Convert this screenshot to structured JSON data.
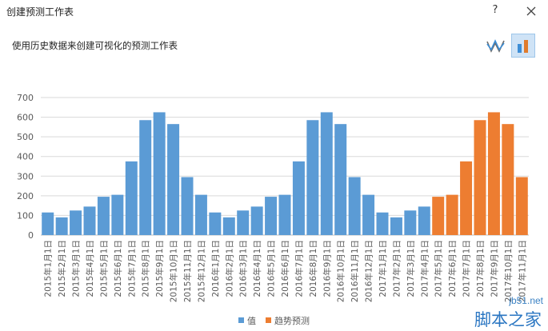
{
  "window": {
    "title": "创建预测工作表",
    "help_label": "?"
  },
  "header": {
    "subtitle": "使用历史数据来创建可视化的预测工作表"
  },
  "chart_type_buttons": [
    {
      "icon": "line-chart-icon",
      "selected": false
    },
    {
      "icon": "column-chart-icon",
      "selected": true
    }
  ],
  "colors": {
    "value": "#5b9bd5",
    "forecast": "#ed7d31",
    "grid": "#d9d9d9",
    "axis_text": "#595959"
  },
  "chart_data": {
    "type": "bar",
    "ylim": [
      0,
      700
    ],
    "y_ticks": [
      0,
      100,
      200,
      300,
      400,
      500,
      600,
      700
    ],
    "grid": true,
    "legend_position": "bottom-center",
    "categories": [
      "2015年1月1日",
      "2015年2月1日",
      "2015年3月1日",
      "2015年4月1日",
      "2015年5月1日",
      "2015年6月1日",
      "2015年7月1日",
      "2015年8月1日",
      "2015年9月1日",
      "2015年10月1日",
      "2015年11月1日",
      "2015年12月1日",
      "2016年1月1日",
      "2016年2月1日",
      "2016年3月1日",
      "2016年4月1日",
      "2016年5月1日",
      "2016年6月1日",
      "2016年7月1日",
      "2016年8月1日",
      "2016年9月1日",
      "2016年10月1日",
      "2016年11月1日",
      "2016年12月1日",
      "2017年1月1日",
      "2017年2月1日",
      "2017年3月1日",
      "2017年4月1日",
      "2017年5月1日",
      "2017年6月1日",
      "2017年7月1日",
      "2017年8月1日",
      "2017年9月1日",
      "2017年10月1日",
      "2017年11月1日"
    ],
    "series": [
      {
        "name": "值",
        "values": [
          115,
          90,
          125,
          145,
          195,
          205,
          375,
          585,
          625,
          565,
          295,
          205,
          115,
          90,
          125,
          145,
          195,
          205,
          375,
          585,
          625,
          565,
          295,
          205,
          115,
          90,
          125,
          145,
          null,
          null,
          null,
          null,
          null,
          null,
          null
        ]
      },
      {
        "name": "趋势预测",
        "values": [
          null,
          null,
          null,
          null,
          null,
          null,
          null,
          null,
          null,
          null,
          null,
          null,
          null,
          null,
          null,
          null,
          null,
          null,
          null,
          null,
          null,
          null,
          null,
          null,
          null,
          null,
          null,
          null,
          195,
          205,
          375,
          585,
          625,
          565,
          295
        ]
      }
    ]
  },
  "watermark": {
    "url": "jb51.net",
    "text": "脚本之家"
  }
}
